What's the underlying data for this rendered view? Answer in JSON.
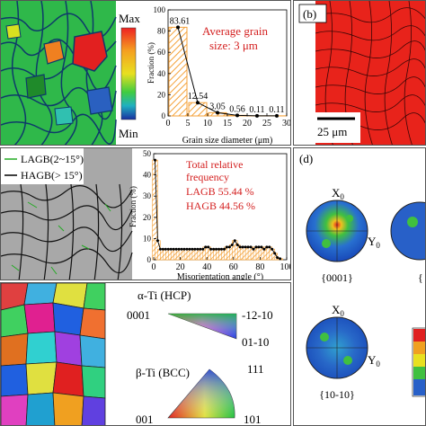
{
  "panel_a": {
    "colorbar_max": "Max",
    "colorbar_min": "Min",
    "annotation_line1": "Average grain",
    "annotation_line2": "size: 3 μm",
    "chart_data": {
      "type": "bar",
      "x": [
        2.5,
        7.5,
        12.5,
        17.5,
        22.5,
        27.5
      ],
      "values": [
        83.61,
        12.54,
        3.05,
        0.56,
        0.11,
        0.11
      ],
      "data_labels": [
        "83.61",
        "12.54",
        "3.05",
        "0.56",
        "0.11",
        "0.11"
      ],
      "xlabel": "Grain size diameter (μm)",
      "ylabel": "Fraction (%)",
      "xlim": [
        0,
        30
      ],
      "ylim": [
        0,
        100
      ],
      "xticks": [
        "0",
        "5",
        "10",
        "15",
        "20",
        "25",
        "30"
      ],
      "yticks": [
        "0",
        "20",
        "40",
        "60",
        "80",
        "100"
      ],
      "bar_color": "#f4a23a"
    }
  },
  "panel_b": {
    "label": "(b)",
    "scale_bar": "25 μm",
    "map_color": "#e8231b"
  },
  "panel_c": {
    "legend_lagb": "LAGB(2~15°)",
    "legend_hagb": "HAGB(> 15°)",
    "lagb_color": "#22aa22",
    "hagb_color": "#000000",
    "annotation_title1": "Total relative",
    "annotation_title2": "frequency",
    "annotation_lagb": "LAGB   55.44 %",
    "annotation_hagb": "HAGB   44.56 %",
    "chart_data": {
      "type": "bar",
      "x": [
        1,
        3,
        5,
        7,
        9,
        11,
        13,
        15,
        17,
        19,
        21,
        23,
        25,
        27,
        29,
        31,
        33,
        35,
        37,
        39,
        41,
        43,
        45,
        47,
        49,
        51,
        53,
        55,
        57,
        59,
        61,
        63,
        65,
        67,
        69,
        71,
        73,
        75,
        77,
        79,
        81,
        83,
        85,
        87,
        89,
        91,
        93,
        95
      ],
      "values": [
        47,
        9,
        5,
        5,
        5,
        5,
        5,
        5,
        5,
        5,
        5,
        5,
        5,
        5,
        5,
        5,
        5,
        5,
        5,
        6,
        6,
        5,
        5,
        5,
        5,
        5,
        5,
        6,
        6,
        7,
        9,
        7,
        6,
        6,
        6,
        6,
        6,
        5,
        6,
        6,
        6,
        5,
        6,
        6,
        5,
        3,
        1,
        0.5
      ],
      "xlabel": "Misorientation angle (°)",
      "ylabel": "Fraction (%)",
      "xlim": [
        0,
        100
      ],
      "ylim": [
        0,
        50
      ],
      "xticks": [
        "0",
        "20",
        "40",
        "60",
        "80",
        "100"
      ],
      "yticks": [
        "0",
        "10",
        "20",
        "30",
        "40",
        "50"
      ],
      "bar_color": "#f4a23a"
    }
  },
  "panel_d": {
    "label": "(d)",
    "pf_0001_x": "X",
    "pf_0001_x_sub": "0",
    "pf_0001_y": "Y",
    "pf_0001_y_sub": "0",
    "pf_0001_caption": "{0001}",
    "pf_1010_x": "X",
    "pf_1010_x_sub": "0",
    "pf_1010_y": "Y",
    "pf_1010_y_sub": "0",
    "pf_1010_caption": "{10-10}",
    "pf_partial_caption": "{"
  },
  "panel_e": {
    "alpha_label": "α-Ti  (HCP)",
    "alpha_0001": "0001",
    "alpha_1210": "-12-10",
    "alpha_0110": "01-10",
    "beta_label": "β-Ti  (BCC)",
    "beta_001": "001",
    "beta_111": "111",
    "beta_101": "101"
  }
}
